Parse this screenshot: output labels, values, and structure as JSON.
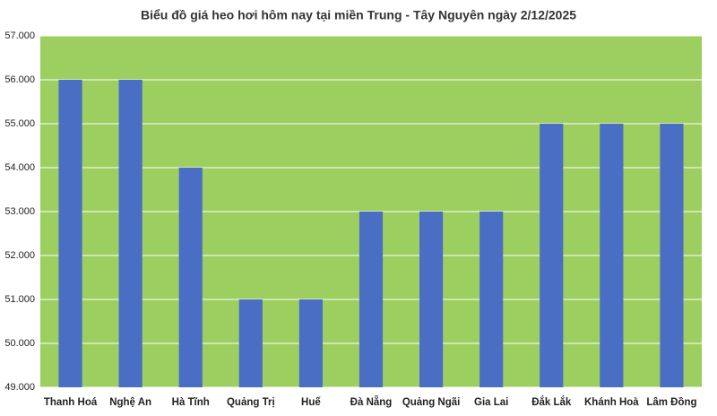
{
  "chart_data": {
    "type": "bar",
    "title": "Biểu đồ giá heo hơi hôm nay tại miền Trung - Tây Nguyên ngày 2/12/2025",
    "categories": [
      "Thanh Hoá",
      "Nghệ An",
      "Hà Tĩnh",
      "Quảng Trị",
      "Huế",
      "Đà Nẵng",
      "Quảng Ngãi",
      "Gia Lai",
      "Đắk Lắk",
      "Khánh Hoà",
      "Lâm Đồng"
    ],
    "values": [
      56000,
      56000,
      54000,
      51000,
      51000,
      53000,
      53000,
      53000,
      55000,
      55000,
      55000
    ],
    "color": "#4a6ec3",
    "ylim": [
      49000,
      57000
    ],
    "yticks": [
      {
        "value": 49000,
        "label": "49.000"
      },
      {
        "value": 50000,
        "label": "50.000"
      },
      {
        "value": 51000,
        "label": "51.000"
      },
      {
        "value": 52000,
        "label": "52.000"
      },
      {
        "value": 53000,
        "label": "53.000"
      },
      {
        "value": 54000,
        "label": "54.000"
      },
      {
        "value": 55000,
        "label": "55.000"
      },
      {
        "value": 56000,
        "label": "56.000"
      },
      {
        "value": 57000,
        "label": "57.000"
      }
    ],
    "grid": true
  }
}
